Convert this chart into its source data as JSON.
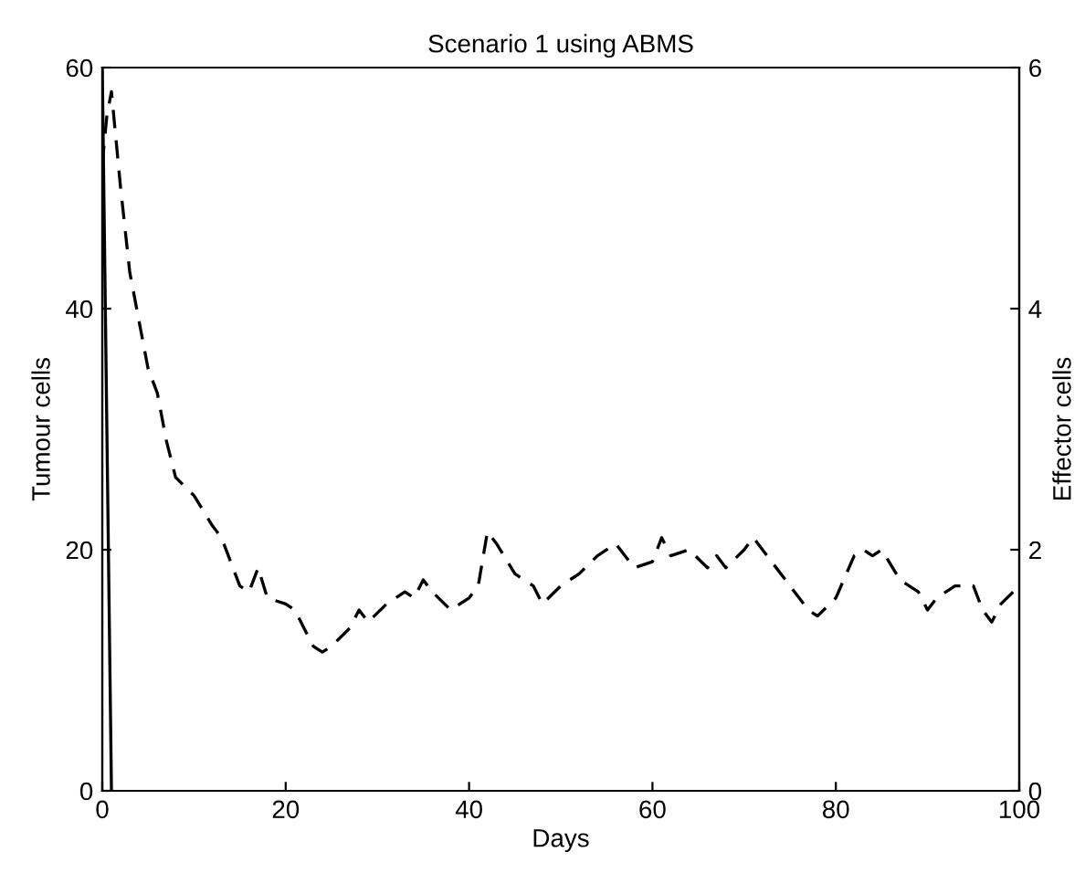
{
  "chart_data": {
    "type": "line",
    "title": "Scenario 1 using ABMS",
    "xlabel": "Days",
    "ylabel": "Tumour cells",
    "y2label": "Effector cells",
    "xlim": [
      0,
      100
    ],
    "xticks": [
      0,
      20,
      40,
      60,
      80,
      100
    ],
    "ylim": [
      0,
      60
    ],
    "yticks": [
      0,
      20,
      40,
      60
    ],
    "y2lim": [
      0,
      6
    ],
    "y2ticks": [
      0,
      2,
      4,
      6
    ],
    "grid": false,
    "legend": false,
    "series": [
      {
        "color": "#000000",
        "line_style": "solid",
        "x": [
          0,
          1
        ],
        "values": [
          60,
          0
        ]
      },
      {
        "color": "#000000",
        "line_style": "dashed",
        "axis": "y2",
        "x": [
          0,
          0.5,
          1,
          2,
          3,
          4,
          5,
          6,
          7,
          8,
          10,
          12,
          13,
          15,
          16,
          17,
          18,
          20,
          21,
          23,
          24,
          25,
          27,
          28,
          29,
          31,
          33,
          34,
          35,
          36,
          38,
          40,
          41,
          42,
          43,
          45,
          47,
          48,
          50,
          52,
          54,
          56,
          58,
          60,
          61,
          62,
          64,
          66,
          67,
          68,
          70,
          71,
          73,
          75,
          77,
          78,
          80,
          82,
          83,
          84,
          85,
          87,
          89,
          90,
          91,
          93,
          95,
          96,
          97,
          98,
          100
        ],
        "values": [
          5.2,
          5.6,
          5.8,
          5.0,
          4.3,
          3.9,
          3.5,
          3.3,
          2.9,
          2.6,
          2.45,
          2.2,
          2.1,
          1.7,
          1.65,
          1.85,
          1.6,
          1.55,
          1.5,
          1.2,
          1.15,
          1.2,
          1.35,
          1.5,
          1.4,
          1.55,
          1.65,
          1.6,
          1.75,
          1.65,
          1.5,
          1.6,
          1.7,
          2.15,
          2.05,
          1.8,
          1.7,
          1.55,
          1.7,
          1.8,
          1.95,
          2.05,
          1.85,
          1.9,
          2.1,
          1.95,
          2.0,
          1.85,
          1.95,
          1.85,
          2.0,
          2.1,
          1.9,
          1.7,
          1.5,
          1.45,
          1.6,
          1.95,
          2.0,
          1.95,
          2.0,
          1.75,
          1.65,
          1.5,
          1.6,
          1.7,
          1.7,
          1.5,
          1.4,
          1.55,
          1.7
        ]
      }
    ]
  }
}
